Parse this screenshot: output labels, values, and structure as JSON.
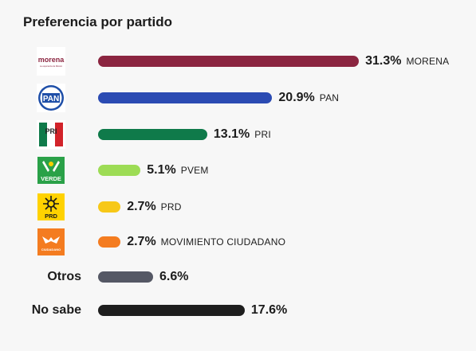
{
  "title": "Preferencia por partido",
  "chart_data": {
    "type": "bar",
    "orientation": "horizontal",
    "title": "Preferencia por partido",
    "categories": [
      "MORENA",
      "PAN",
      "PRI",
      "PVEM",
      "PRD",
      "MOVIMIENTO CIUDADANO",
      "Otros",
      "No sabe"
    ],
    "values": [
      31.3,
      20.9,
      13.1,
      5.1,
      2.7,
      2.7,
      6.6,
      17.6
    ],
    "value_labels": [
      "31.3%",
      "20.9%",
      "13.1%",
      "5.1%",
      "2.7%",
      "2.7%",
      "6.6%",
      "17.6%"
    ],
    "unit": "%",
    "grid": false,
    "legend": "none"
  },
  "rows": [
    {
      "key": "morena",
      "pct": "31.3%",
      "name": "MORENA",
      "color": "#8b2540",
      "icon": "morena-logo-icon",
      "logo_text": "morena",
      "logo_sub": "La esperanza de México"
    },
    {
      "key": "pan",
      "pct": "20.9%",
      "name": "PAN",
      "color": "#2b4bb3",
      "icon": "pan-logo-icon",
      "logo_text": "PAN"
    },
    {
      "key": "pri",
      "pct": "13.1%",
      "name": "PRI",
      "color": "#0f7a4a",
      "icon": "pri-logo-icon",
      "logo_text": "PRI"
    },
    {
      "key": "pvem",
      "pct": "5.1%",
      "name": "PVEM",
      "color": "#9ddc55",
      "icon": "pvem-logo-icon",
      "logo_text": "VERDE"
    },
    {
      "key": "prd",
      "pct": "2.7%",
      "name": "PRD",
      "color": "#f7c818",
      "icon": "prd-logo-icon",
      "logo_text": "PRD"
    },
    {
      "key": "mc",
      "pct": "2.7%",
      "name": "MOVIMIENTO CIUDADANO",
      "color": "#f47c20",
      "icon": "movimiento-ciudadano-logo-icon",
      "logo_text": "CIUDADANO"
    },
    {
      "key": "otros",
      "pct": "6.6%",
      "label": "Otros",
      "color": "#555865"
    },
    {
      "key": "nosabe",
      "pct": "17.6%",
      "label": "No sabe",
      "color": "#1e1e1e"
    }
  ]
}
